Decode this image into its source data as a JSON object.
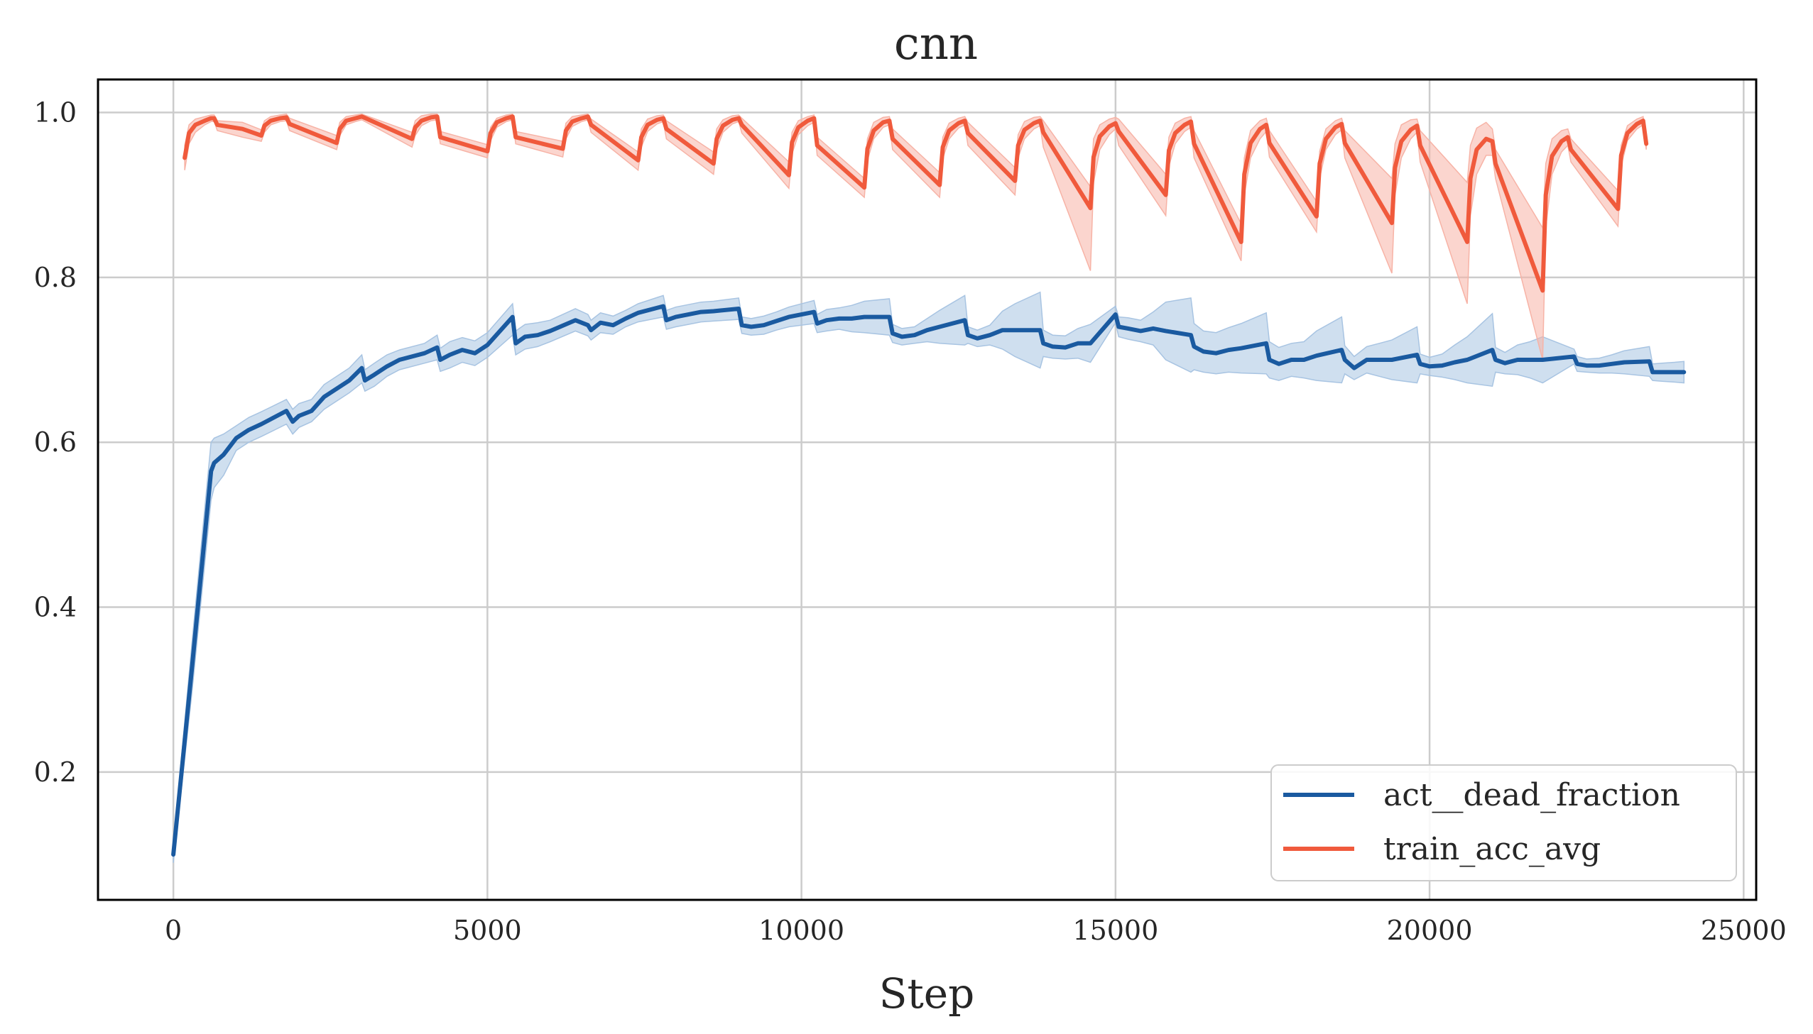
{
  "chart_data": {
    "type": "line",
    "title": "cnn",
    "xlabel": "Step",
    "ylabel": "",
    "xlim": [
      -1200,
      25200
    ],
    "ylim": [
      0.045,
      1.04
    ],
    "x_ticks": [
      0,
      5000,
      10000,
      15000,
      20000,
      25000
    ],
    "x_tick_labels": [
      "0",
      "5000",
      "10000",
      "15000",
      "20000",
      "25000"
    ],
    "y_ticks": [
      0.2,
      0.4,
      0.6,
      0.8,
      1.0
    ],
    "y_tick_labels": [
      "0.2",
      "0.4",
      "0.6",
      "0.8",
      "1.0"
    ],
    "grid": true,
    "legend_position": "lower-right",
    "series": [
      {
        "name": "act__dead_fraction",
        "color": "#1a5aa0",
        "band_color": "#a8c4e2",
        "x": [
          0,
          300,
          600,
          650,
          800,
          1000,
          1200,
          1400,
          1800,
          1900,
          2000,
          2200,
          2400,
          2800,
          3000,
          3050,
          3200,
          3400,
          3600,
          4000,
          4200,
          4250,
          4400,
          4600,
          4800,
          5000,
          5400,
          5450,
          5600,
          5800,
          6000,
          6400,
          6600,
          6650,
          6800,
          7000,
          7200,
          7400,
          7800,
          7850,
          8000,
          8200,
          8400,
          8600,
          9000,
          9050,
          9200,
          9400,
          9600,
          9800,
          10200,
          10250,
          10400,
          10600,
          10800,
          11000,
          11400,
          11450,
          11600,
          11800,
          12000,
          12200,
          12600,
          12650,
          12800,
          13000,
          13200,
          13400,
          13800,
          13850,
          14000,
          14200,
          14400,
          14600,
          15000,
          15050,
          15200,
          15400,
          15600,
          15800,
          16200,
          16250,
          16400,
          16600,
          16800,
          17000,
          17400,
          17450,
          17600,
          17800,
          18000,
          18200,
          18600,
          18650,
          18800,
          19000,
          19200,
          19400,
          19800,
          19850,
          20000,
          20200,
          20400,
          20600,
          21000,
          21050,
          21200,
          21400,
          21600,
          21800,
          22300,
          22350,
          22500,
          22700,
          22900,
          23100,
          23500,
          23550,
          23700,
          23900,
          24050
        ],
        "y": [
          0.1,
          0.33,
          0.565,
          0.575,
          0.585,
          0.605,
          0.615,
          0.622,
          0.638,
          0.625,
          0.632,
          0.638,
          0.655,
          0.675,
          0.69,
          0.675,
          0.682,
          0.692,
          0.7,
          0.708,
          0.715,
          0.7,
          0.706,
          0.712,
          0.708,
          0.718,
          0.752,
          0.72,
          0.728,
          0.73,
          0.735,
          0.748,
          0.742,
          0.736,
          0.745,
          0.742,
          0.75,
          0.757,
          0.765,
          0.748,
          0.752,
          0.755,
          0.758,
          0.759,
          0.762,
          0.742,
          0.74,
          0.742,
          0.747,
          0.752,
          0.758,
          0.744,
          0.748,
          0.75,
          0.75,
          0.752,
          0.752,
          0.732,
          0.728,
          0.73,
          0.736,
          0.74,
          0.748,
          0.73,
          0.726,
          0.73,
          0.736,
          0.736,
          0.736,
          0.72,
          0.716,
          0.715,
          0.72,
          0.72,
          0.755,
          0.74,
          0.738,
          0.735,
          0.738,
          0.735,
          0.73,
          0.716,
          0.71,
          0.708,
          0.712,
          0.714,
          0.72,
          0.7,
          0.695,
          0.7,
          0.7,
          0.705,
          0.712,
          0.7,
          0.69,
          0.7,
          0.7,
          0.7,
          0.706,
          0.695,
          0.692,
          0.693,
          0.697,
          0.7,
          0.712,
          0.7,
          0.696,
          0.7,
          0.7,
          0.7,
          0.704,
          0.695,
          0.693,
          0.693,
          0.695,
          0.697,
          0.698,
          0.685,
          0.685,
          0.685,
          0.685
        ],
        "lower": [
          0.09,
          0.3,
          0.53,
          0.545,
          0.56,
          0.59,
          0.6,
          0.607,
          0.622,
          0.61,
          0.618,
          0.625,
          0.64,
          0.66,
          0.672,
          0.662,
          0.668,
          0.68,
          0.688,
          0.696,
          0.7,
          0.686,
          0.69,
          0.697,
          0.693,
          0.703,
          0.73,
          0.706,
          0.713,
          0.716,
          0.722,
          0.735,
          0.729,
          0.724,
          0.733,
          0.731,
          0.74,
          0.746,
          0.752,
          0.737,
          0.74,
          0.743,
          0.746,
          0.747,
          0.749,
          0.732,
          0.73,
          0.731,
          0.736,
          0.74,
          0.744,
          0.733,
          0.735,
          0.737,
          0.734,
          0.733,
          0.73,
          0.721,
          0.718,
          0.72,
          0.722,
          0.72,
          0.718,
          0.72,
          0.716,
          0.718,
          0.713,
          0.704,
          0.69,
          0.704,
          0.702,
          0.701,
          0.702,
          0.697,
          0.745,
          0.728,
          0.725,
          0.722,
          0.718,
          0.7,
          0.685,
          0.688,
          0.685,
          0.683,
          0.685,
          0.684,
          0.683,
          0.678,
          0.675,
          0.68,
          0.678,
          0.675,
          0.672,
          0.683,
          0.676,
          0.684,
          0.68,
          0.676,
          0.672,
          0.683,
          0.681,
          0.679,
          0.676,
          0.672,
          0.668,
          0.685,
          0.683,
          0.682,
          0.678,
          0.672,
          0.695,
          0.686,
          0.685,
          0.684,
          0.684,
          0.683,
          0.68,
          0.675,
          0.674,
          0.673,
          0.672
        ],
        "upper": [
          0.11,
          0.36,
          0.6,
          0.605,
          0.61,
          0.62,
          0.63,
          0.637,
          0.652,
          0.64,
          0.647,
          0.652,
          0.67,
          0.69,
          0.706,
          0.688,
          0.696,
          0.706,
          0.712,
          0.72,
          0.73,
          0.714,
          0.722,
          0.727,
          0.723,
          0.733,
          0.768,
          0.735,
          0.743,
          0.745,
          0.748,
          0.762,
          0.755,
          0.748,
          0.757,
          0.753,
          0.76,
          0.768,
          0.778,
          0.76,
          0.764,
          0.767,
          0.77,
          0.771,
          0.775,
          0.752,
          0.75,
          0.753,
          0.758,
          0.764,
          0.772,
          0.755,
          0.761,
          0.763,
          0.766,
          0.771,
          0.774,
          0.743,
          0.738,
          0.74,
          0.75,
          0.76,
          0.778,
          0.74,
          0.736,
          0.742,
          0.759,
          0.768,
          0.782,
          0.736,
          0.73,
          0.729,
          0.738,
          0.743,
          0.765,
          0.752,
          0.751,
          0.748,
          0.758,
          0.77,
          0.775,
          0.744,
          0.735,
          0.733,
          0.739,
          0.744,
          0.757,
          0.722,
          0.715,
          0.72,
          0.722,
          0.735,
          0.752,
          0.717,
          0.704,
          0.716,
          0.72,
          0.724,
          0.74,
          0.707,
          0.703,
          0.707,
          0.718,
          0.728,
          0.756,
          0.715,
          0.709,
          0.718,
          0.722,
          0.728,
          0.713,
          0.704,
          0.701,
          0.702,
          0.706,
          0.711,
          0.716,
          0.695,
          0.696,
          0.697,
          0.698
        ]
      },
      {
        "name": "train_acc_avg",
        "color": "#f05a3c",
        "band_color": "#f7b3a6",
        "x": [
          180,
          250,
          350,
          500,
          600,
          650,
          700,
          1100,
          1400,
          1450,
          1550,
          1700,
          1800,
          1850,
          2600,
          2650,
          2750,
          2900,
          3000,
          3800,
          3850,
          3950,
          4100,
          4200,
          4250,
          5000,
          5050,
          5150,
          5300,
          5400,
          5450,
          6200,
          6250,
          6350,
          6500,
          6600,
          6650,
          7400,
          7450,
          7550,
          7700,
          7800,
          7850,
          8600,
          8650,
          8750,
          8900,
          9000,
          9050,
          9800,
          9850,
          9950,
          10100,
          10200,
          10250,
          11000,
          11050,
          11150,
          11300,
          11400,
          11450,
          12200,
          12250,
          12350,
          12500,
          12600,
          12650,
          13400,
          13450,
          13550,
          13700,
          13800,
          13850,
          14600,
          14650,
          14750,
          14900,
          15000,
          15050,
          15800,
          15850,
          15950,
          16100,
          16200,
          16250,
          17000,
          17050,
          17150,
          17300,
          17400,
          17450,
          18200,
          18250,
          18350,
          18500,
          18600,
          18650,
          19400,
          19450,
          19550,
          19700,
          19800,
          19850,
          20600,
          20650,
          20750,
          20900,
          21000,
          21050,
          21800,
          21850,
          21950,
          22100,
          22200,
          22250,
          23000,
          23050,
          23150,
          23300,
          23400,
          23450
        ],
        "y": [
          0.945,
          0.975,
          0.985,
          0.99,
          0.993,
          0.993,
          0.985,
          0.98,
          0.972,
          0.984,
          0.99,
          0.993,
          0.994,
          0.986,
          0.963,
          0.98,
          0.99,
          0.993,
          0.995,
          0.968,
          0.982,
          0.99,
          0.994,
          0.995,
          0.97,
          0.953,
          0.975,
          0.988,
          0.993,
          0.995,
          0.97,
          0.956,
          0.978,
          0.989,
          0.993,
          0.995,
          0.985,
          0.942,
          0.97,
          0.985,
          0.991,
          0.993,
          0.98,
          0.938,
          0.968,
          0.984,
          0.991,
          0.993,
          0.985,
          0.924,
          0.964,
          0.982,
          0.99,
          0.993,
          0.96,
          0.909,
          0.956,
          0.978,
          0.988,
          0.99,
          0.968,
          0.912,
          0.958,
          0.978,
          0.987,
          0.99,
          0.975,
          0.917,
          0.96,
          0.979,
          0.987,
          0.99,
          0.976,
          0.884,
          0.946,
          0.971,
          0.983,
          0.987,
          0.977,
          0.9,
          0.954,
          0.975,
          0.985,
          0.989,
          0.962,
          0.843,
          0.925,
          0.963,
          0.98,
          0.985,
          0.963,
          0.874,
          0.938,
          0.968,
          0.982,
          0.986,
          0.963,
          0.866,
          0.933,
          0.965,
          0.979,
          0.984,
          0.96,
          0.843,
          0.92,
          0.955,
          0.968,
          0.965,
          0.938,
          0.784,
          0.9,
          0.947,
          0.965,
          0.97,
          0.955,
          0.883,
          0.948,
          0.975,
          0.986,
          0.99,
          0.962
        ],
        "lower": [
          0.93,
          0.962,
          0.976,
          0.985,
          0.989,
          0.989,
          0.978,
          0.97,
          0.965,
          0.976,
          0.985,
          0.989,
          0.99,
          0.978,
          0.955,
          0.972,
          0.985,
          0.989,
          0.991,
          0.958,
          0.972,
          0.984,
          0.99,
          0.991,
          0.962,
          0.945,
          0.966,
          0.982,
          0.989,
          0.991,
          0.962,
          0.946,
          0.968,
          0.983,
          0.989,
          0.991,
          0.976,
          0.93,
          0.958,
          0.977,
          0.986,
          0.989,
          0.968,
          0.925,
          0.955,
          0.976,
          0.986,
          0.989,
          0.975,
          0.908,
          0.95,
          0.973,
          0.984,
          0.988,
          0.948,
          0.897,
          0.942,
          0.968,
          0.982,
          0.985,
          0.955,
          0.897,
          0.944,
          0.968,
          0.981,
          0.985,
          0.96,
          0.9,
          0.945,
          0.968,
          0.98,
          0.984,
          0.958,
          0.808,
          0.915,
          0.955,
          0.973,
          0.98,
          0.96,
          0.875,
          0.935,
          0.962,
          0.977,
          0.982,
          0.945,
          0.82,
          0.9,
          0.945,
          0.968,
          0.977,
          0.946,
          0.855,
          0.92,
          0.955,
          0.973,
          0.979,
          0.945,
          0.805,
          0.9,
          0.945,
          0.968,
          0.976,
          0.94,
          0.768,
          0.875,
          0.925,
          0.948,
          0.948,
          0.92,
          0.7,
          0.86,
          0.925,
          0.952,
          0.96,
          0.94,
          0.862,
          0.935,
          0.966,
          0.98,
          0.985,
          0.955
        ],
        "upper": [
          0.96,
          0.985,
          0.992,
          0.995,
          0.997,
          0.997,
          0.99,
          0.988,
          0.979,
          0.99,
          0.995,
          0.997,
          0.998,
          0.993,
          0.972,
          0.988,
          0.995,
          0.997,
          0.998,
          0.976,
          0.99,
          0.996,
          0.998,
          0.998,
          0.977,
          0.961,
          0.982,
          0.993,
          0.997,
          0.998,
          0.977,
          0.965,
          0.987,
          0.995,
          0.997,
          0.998,
          0.992,
          0.952,
          0.98,
          0.992,
          0.996,
          0.997,
          0.99,
          0.952,
          0.98,
          0.991,
          0.996,
          0.997,
          0.993,
          0.94,
          0.976,
          0.99,
          0.995,
          0.997,
          0.97,
          0.92,
          0.968,
          0.988,
          0.994,
          0.995,
          0.98,
          0.927,
          0.97,
          0.987,
          0.993,
          0.995,
          0.988,
          0.933,
          0.973,
          0.989,
          0.994,
          0.995,
          0.99,
          0.91,
          0.968,
          0.985,
          0.992,
          0.994,
          0.992,
          0.925,
          0.97,
          0.987,
          0.993,
          0.995,
          0.978,
          0.865,
          0.945,
          0.978,
          0.99,
          0.993,
          0.978,
          0.892,
          0.953,
          0.98,
          0.99,
          0.993,
          0.978,
          0.92,
          0.962,
          0.985,
          0.991,
          0.992,
          0.978,
          0.915,
          0.96,
          0.981,
          0.988,
          0.98,
          0.955,
          0.86,
          0.938,
          0.968,
          0.978,
          0.98,
          0.968,
          0.905,
          0.96,
          0.984,
          0.992,
          0.995,
          0.97
        ]
      }
    ]
  }
}
